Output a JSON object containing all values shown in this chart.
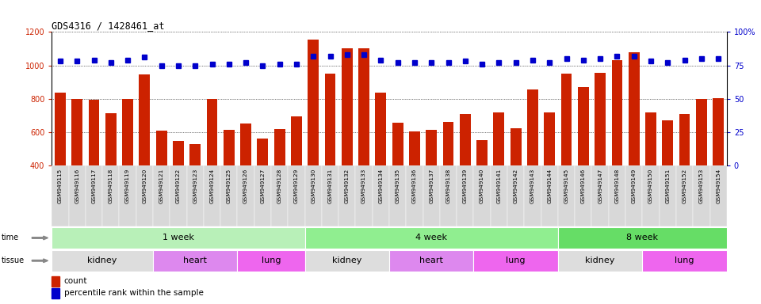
{
  "title": "GDS4316 / 1428461_at",
  "samples": [
    "GSM949115",
    "GSM949116",
    "GSM949117",
    "GSM949118",
    "GSM949119",
    "GSM949120",
    "GSM949121",
    "GSM949122",
    "GSM949123",
    "GSM949124",
    "GSM949125",
    "GSM949126",
    "GSM949127",
    "GSM949128",
    "GSM949129",
    "GSM949130",
    "GSM949131",
    "GSM949132",
    "GSM949133",
    "GSM949134",
    "GSM949135",
    "GSM949136",
    "GSM949137",
    "GSM949138",
    "GSM949139",
    "GSM949140",
    "GSM949141",
    "GSM949142",
    "GSM949143",
    "GSM949144",
    "GSM949145",
    "GSM949146",
    "GSM949147",
    "GSM949148",
    "GSM949149",
    "GSM949150",
    "GSM949151",
    "GSM949152",
    "GSM949153",
    "GSM949154"
  ],
  "counts": [
    835,
    800,
    795,
    715,
    800,
    945,
    610,
    548,
    530,
    800,
    615,
    650,
    560,
    620,
    695,
    1155,
    950,
    1100,
    1100,
    835,
    655,
    605,
    615,
    660,
    710,
    555,
    720,
    625,
    855,
    720,
    950,
    870,
    955,
    1030,
    1080,
    720,
    670,
    710,
    800,
    805
  ],
  "percentile": [
    78,
    78,
    79,
    77,
    79,
    81,
    75,
    75,
    75,
    76,
    76,
    77,
    75,
    76,
    76,
    82,
    82,
    83,
    83,
    79,
    77,
    77,
    77,
    77,
    78,
    76,
    77,
    77,
    79,
    77,
    80,
    79,
    80,
    82,
    82,
    78,
    77,
    79,
    80,
    80
  ],
  "ylim_left": [
    400,
    1200
  ],
  "ylim_right": [
    0,
    100
  ],
  "yticks_left": [
    400,
    600,
    800,
    1000,
    1200
  ],
  "yticks_right": [
    0,
    25,
    50,
    75,
    100
  ],
  "bar_color": "#cc2200",
  "dot_color": "#0000cc",
  "time_groups": [
    {
      "label": "1 week",
      "start": 0,
      "end": 15,
      "color": "#b8f0b8"
    },
    {
      "label": "4 week",
      "start": 15,
      "end": 30,
      "color": "#90ee90"
    },
    {
      "label": "8 week",
      "start": 30,
      "end": 40,
      "color": "#66dd66"
    }
  ],
  "tissue_groups": [
    {
      "label": "kidney",
      "start": 0,
      "end": 6,
      "color": "#dddddd"
    },
    {
      "label": "heart",
      "start": 6,
      "end": 11,
      "color": "#dd88ee"
    },
    {
      "label": "lung",
      "start": 11,
      "end": 15,
      "color": "#ee66ee"
    },
    {
      "label": "kidney",
      "start": 15,
      "end": 20,
      "color": "#dddddd"
    },
    {
      "label": "heart",
      "start": 20,
      "end": 25,
      "color": "#dd88ee"
    },
    {
      "label": "lung",
      "start": 25,
      "end": 30,
      "color": "#ee66ee"
    },
    {
      "label": "kidney",
      "start": 30,
      "end": 35,
      "color": "#dddddd"
    },
    {
      "label": "lung",
      "start": 35,
      "end": 40,
      "color": "#ee66ee"
    }
  ],
  "legend_count_label": "count",
  "legend_pct_label": "percentile rank within the sample"
}
